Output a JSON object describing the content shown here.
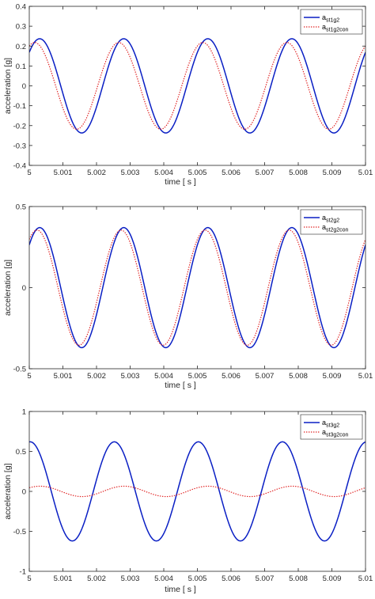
{
  "colors": {
    "solid": "#0a1fc4",
    "dotted": "#e02020",
    "axis": "#262626"
  },
  "chart_data": [
    {
      "type": "line",
      "xlabel": "time [ s ]",
      "ylabel": "acceleration [g]",
      "xlim": [
        5,
        5.01
      ],
      "ylim": [
        -0.4,
        0.4
      ],
      "xticks": [
        "5",
        "5.001",
        "5.002",
        "5.003",
        "5.004",
        "5.005",
        "5.006",
        "5.007",
        "5.008",
        "5.009",
        "5.01"
      ],
      "yticks": [
        "0.4",
        "0.3",
        "0.2",
        "0.1",
        "0",
        "-0.1",
        "-0.2",
        "-0.3",
        "-0.4"
      ],
      "legend_position": "top-right",
      "series": [
        {
          "name": "a",
          "name_sub": "st1g2",
          "style": "solid",
          "amplitude": 0.237,
          "period": 0.0025,
          "peak_time": 5.00031
        },
        {
          "name": "a",
          "name_sub": "st1g2con",
          "style": "dotted",
          "amplitude": 0.218,
          "period": 0.0025,
          "peak_time": 5.00016
        }
      ]
    },
    {
      "type": "line",
      "xlabel": "time [ s ]",
      "ylabel": "acceleration [g]",
      "xlim": [
        5,
        5.01
      ],
      "ylim": [
        -0.5,
        0.5
      ],
      "xticks": [
        "5",
        "5.001",
        "5.002",
        "5.003",
        "5.004",
        "5.005",
        "5.006",
        "5.007",
        "5.008",
        "5.009",
        "5.01"
      ],
      "yticks": [
        "0.5",
        "0",
        "-0.5"
      ],
      "legend_position": "top-right",
      "series": [
        {
          "name": "a",
          "name_sub": "st2g2",
          "style": "solid",
          "amplitude": 0.37,
          "period": 0.0025,
          "peak_time": 5.00031
        },
        {
          "name": "a",
          "name_sub": "st2g2con",
          "style": "dotted",
          "amplitude": 0.355,
          "period": 0.0025,
          "peak_time": 5.00023
        }
      ]
    },
    {
      "type": "line",
      "xlabel": "time [ s ]",
      "ylabel": "acceleration [g]",
      "xlim": [
        5,
        5.01
      ],
      "ylim": [
        -1,
        1
      ],
      "xticks": [
        "5",
        "5.001",
        "5.002",
        "5.003",
        "5.004",
        "5.005",
        "5.006",
        "5.007",
        "5.008",
        "5.009",
        "5.01"
      ],
      "yticks": [
        "1",
        "0.5",
        "0",
        "-0.5",
        "-1"
      ],
      "legend_position": "top-right",
      "series": [
        {
          "name": "a",
          "name_sub": "st3g2",
          "style": "solid",
          "amplitude": 0.62,
          "period": 0.0025,
          "peak_time": 5.00003
        },
        {
          "name": "a",
          "name_sub": "st3g2con",
          "style": "dotted",
          "amplitude": 0.065,
          "period": 0.0025,
          "peak_time": 5.00032
        }
      ]
    }
  ]
}
